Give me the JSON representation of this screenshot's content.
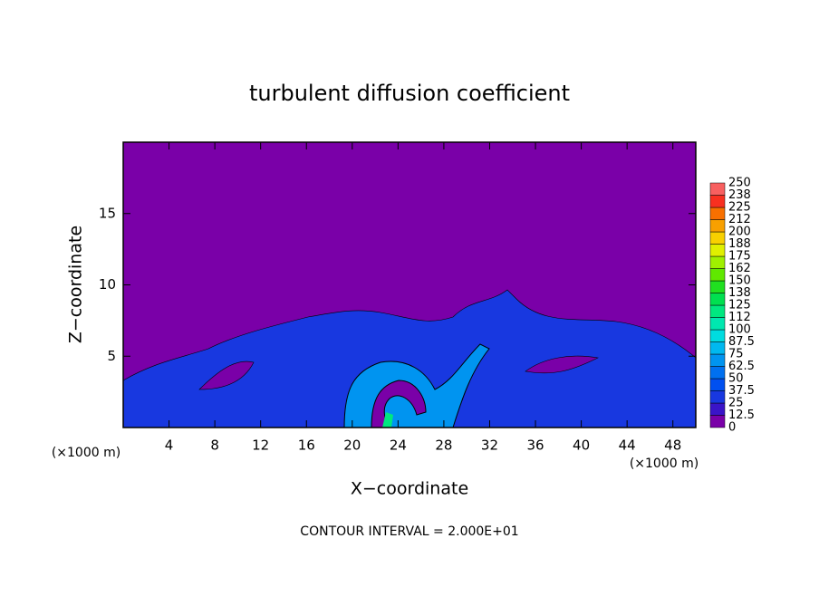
{
  "chart_data": {
    "type": "contour",
    "title": "turbulent diffusion coefficient",
    "x_label": "X−coordinate",
    "y_label": "Z−coordinate",
    "x_unit_label": "(×1000 m)",
    "y_unit_label": "(×1000 m)",
    "footnote": "CONTOUR INTERVAL = 2.000E+01",
    "xlim": [
      0,
      50
    ],
    "xticks": [
      4,
      8,
      12,
      16,
      20,
      24,
      28,
      32,
      36,
      40,
      44,
      48
    ],
    "ylim": [
      0,
      20
    ],
    "yticks": [
      5,
      10,
      15
    ],
    "colorbar": {
      "levels": [
        0,
        12.5,
        25,
        37.5,
        50,
        62.5,
        75,
        87.5,
        100,
        {
          "value": 112.5,
          "label": "112"
        },
        125,
        {
          "value": 137.5,
          "label": "138"
        },
        150,
        {
          "value": 162.5,
          "label": "162"
        },
        175,
        {
          "value": 187.5,
          "label": "188"
        },
        200,
        {
          "value": 212.5,
          "label": "212"
        },
        225,
        {
          "value": 237.5,
          "label": "238"
        },
        250
      ],
      "colors": [
        "#7a00a8",
        "#3a14c8",
        "#1838e0",
        "#0050f0",
        "#0070f0",
        "#0094f0",
        "#00b8f0",
        "#00dce0",
        "#00e8b0",
        "#00e880",
        "#00e050",
        "#20e020",
        "#60e800",
        "#a0f000",
        "#e0f000",
        "#f8d000",
        "#f8a000",
        "#f87000",
        "#f83020",
        "#f86060"
      ]
    }
  }
}
